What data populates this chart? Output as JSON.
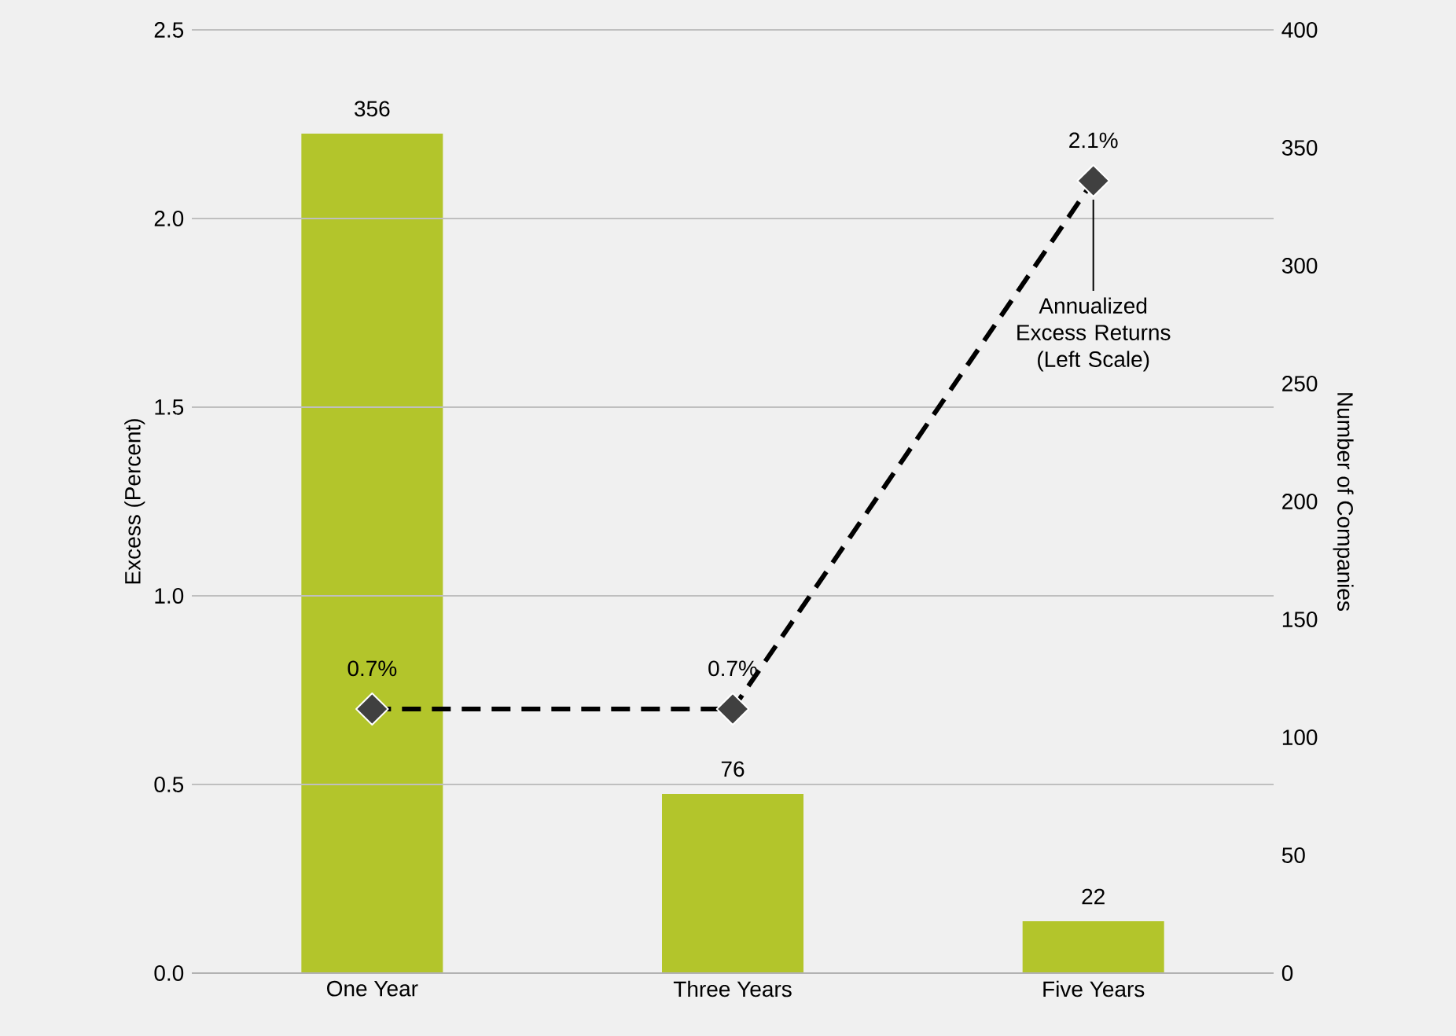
{
  "chart_data": {
    "type": "bar",
    "ylabel": "Excess (Percent)",
    "y2label": "Number of Companies",
    "categories": [
      "One Year",
      "Three Years",
      "Five Years"
    ],
    "series": [
      {
        "axis": "y2",
        "color": "#b3c52b",
        "values": [
          356,
          76,
          22
        ],
        "value_labels": [
          "356",
          "76",
          "22"
        ]
      },
      {
        "type": "line",
        "axis": "y",
        "name": "Annualized Excess Returns (Left Scale)",
        "color": "#000000",
        "values": [
          0.7,
          0.7,
          2.1
        ],
        "value_labels": [
          "0.7%",
          "0.7%",
          "2.1%"
        ]
      }
    ],
    "ylim": [
      0,
      2.5
    ],
    "yticks": [
      {
        "value": 0,
        "label": "0.0"
      },
      {
        "value": 0.5,
        "label": "0.5"
      },
      {
        "value": 1,
        "label": "1.0"
      },
      {
        "value": 1.5,
        "label": "1.5"
      },
      {
        "value": 2,
        "label": "2.0"
      },
      {
        "value": 2.5,
        "label": "2.5"
      }
    ],
    "y2lim": [
      0,
      400
    ],
    "y2ticks": [
      0,
      50,
      100,
      150,
      200,
      250,
      300,
      350,
      400
    ],
    "grid": "y",
    "marker": "diamond",
    "line_style": "dashed"
  }
}
